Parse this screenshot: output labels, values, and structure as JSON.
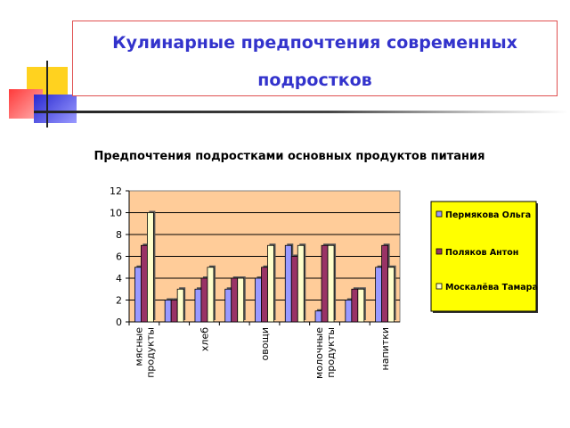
{
  "slide": {
    "title": "Кулинарные предпочтения современных подростков"
  },
  "chart_data": {
    "type": "bar",
    "title": "Предпочтения подростками основных продуктов питания",
    "categories": [
      "мясные продукты",
      "",
      "хлеб",
      "",
      "овощи",
      "",
      "молочные продукты",
      "",
      "напитки"
    ],
    "series": [
      {
        "name": "Пермякова Ольга",
        "color": "#9999ff",
        "values": [
          5,
          2,
          3,
          3,
          4,
          7,
          1,
          2,
          5
        ]
      },
      {
        "name": "Поляков Антон",
        "color": "#993366",
        "values": [
          7,
          2,
          4,
          4,
          5,
          6,
          7,
          3,
          7
        ]
      },
      {
        "name": "Москалёва Тамара",
        "color": "#ffffcc",
        "values": [
          10,
          3,
          5,
          4,
          7,
          7,
          7,
          3,
          5
        ]
      }
    ],
    "ylim": [
      0,
      12
    ],
    "yticks": [
      0,
      2,
      4,
      6,
      8,
      10,
      12
    ],
    "grid": true,
    "legend": "right",
    "colors": {
      "plot_bg": "#ffcc99",
      "legend_bg": "#ffff00"
    }
  }
}
